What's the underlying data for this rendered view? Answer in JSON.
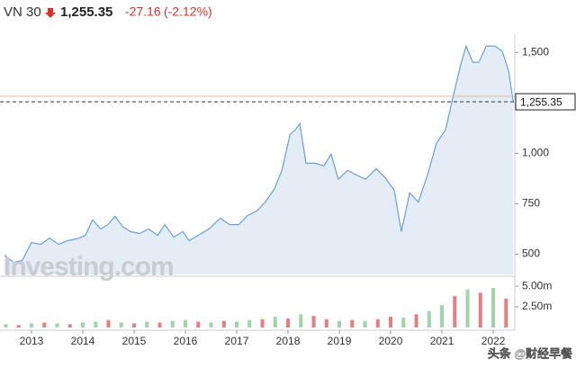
{
  "chart_data": {
    "type": "area",
    "title": "VN 30",
    "current": {
      "value": 1255.35,
      "label": "1,255.35"
    },
    "change": "-27.16",
    "change_percent": "(-2.12%)",
    "reference_line": 1282.51,
    "watermark": "Investing.com",
    "credit": "头条 @财经早餐",
    "series": [
      {
        "name": "VN 30",
        "color": "#6b9fd4",
        "fill": "#e4ecf6",
        "x": [
          2012.47,
          2012.65,
          2012.82,
          2013.0,
          2013.18,
          2013.35,
          2013.53,
          2013.7,
          2013.88,
          2014.05,
          2014.19,
          2014.35,
          2014.49,
          2014.63,
          2014.77,
          2014.93,
          2015.11,
          2015.28,
          2015.46,
          2015.6,
          2015.77,
          2015.95,
          2016.07,
          2016.25,
          2016.46,
          2016.68,
          2016.86,
          2017.04,
          2017.21,
          2017.39,
          2017.56,
          2017.74,
          2017.88,
          2018.04,
          2018.14,
          2018.23,
          2018.35,
          2018.53,
          2018.7,
          2018.84,
          2018.98,
          2019.16,
          2019.33,
          2019.51,
          2019.72,
          2019.89,
          2020.07,
          2020.21,
          2020.37,
          2020.54,
          2020.72,
          2020.89,
          2021.07,
          2021.21,
          2021.37,
          2021.47,
          2021.6,
          2021.72,
          2021.86,
          2022.04,
          2022.18,
          2022.3,
          2022.39
        ],
        "values": [
          496,
          460,
          469,
          558,
          549,
          580,
          549,
          567,
          576,
          594,
          670,
          625,
          647,
          688,
          638,
          612,
          603,
          625,
          594,
          647,
          585,
          612,
          567,
          594,
          625,
          679,
          647,
          647,
          692,
          714,
          759,
          826,
          915,
          1094,
          1116,
          1147,
          951,
          951,
          938,
          996,
          871,
          915,
          893,
          871,
          924,
          880,
          817,
          612,
          804,
          759,
          893,
          1049,
          1116,
          1272,
          1442,
          1531,
          1451,
          1451,
          1531,
          1531,
          1504,
          1406,
          1255
        ]
      }
    ],
    "volume": {
      "name": "Volume",
      "up_color": "#9fd3a8",
      "down_color": "#e08080",
      "x": [
        2012.5,
        2012.75,
        2013.0,
        2013.25,
        2013.5,
        2013.75,
        2014.0,
        2014.25,
        2014.5,
        2014.75,
        2015.0,
        2015.25,
        2015.5,
        2015.75,
        2016.0,
        2016.25,
        2016.5,
        2016.75,
        2017.0,
        2017.25,
        2017.5,
        2017.75,
        2018.0,
        2018.25,
        2018.5,
        2018.75,
        2019.0,
        2019.25,
        2019.5,
        2019.75,
        2020.0,
        2020.25,
        2020.5,
        2020.75,
        2021.0,
        2021.25,
        2021.5,
        2021.75,
        2022.0,
        2022.25
      ],
      "values": [
        0.4,
        0.3,
        0.5,
        0.6,
        0.5,
        0.4,
        0.6,
        0.7,
        0.9,
        0.6,
        0.5,
        0.7,
        0.6,
        0.8,
        0.9,
        0.7,
        0.6,
        0.8,
        0.7,
        0.9,
        1.0,
        1.3,
        1.1,
        1.6,
        1.4,
        1.0,
        0.8,
        0.9,
        0.8,
        1.0,
        1.3,
        1.2,
        1.6,
        2.0,
        2.7,
        3.8,
        4.6,
        4.2,
        4.8,
        3.5
      ],
      "up": [
        true,
        false,
        true,
        false,
        true,
        false,
        true,
        true,
        false,
        true,
        false,
        true,
        false,
        true,
        true,
        false,
        true,
        false,
        true,
        true,
        false,
        true,
        false,
        true,
        false,
        false,
        true,
        false,
        true,
        false,
        false,
        true,
        false,
        true,
        true,
        false,
        true,
        false,
        true,
        false
      ],
      "ylim": [
        0,
        6.1
      ],
      "yticks": [
        {
          "value": 2.5,
          "label": "2.50m"
        },
        {
          "value": 5,
          "label": "5.00m"
        }
      ]
    },
    "xlim": [
      2012.386,
      2022.42
    ],
    "xticks": [
      2013,
      2014,
      2015,
      2016,
      2017,
      2018,
      2019,
      2020,
      2021,
      2022
    ],
    "ylim": [
      400,
      1590
    ],
    "yticks": [
      500,
      750,
      {
        "value": 1000,
        "label": "1,000"
      },
      {
        "value": 1500,
        "label": "1,500"
      }
    ],
    "grid": false
  }
}
